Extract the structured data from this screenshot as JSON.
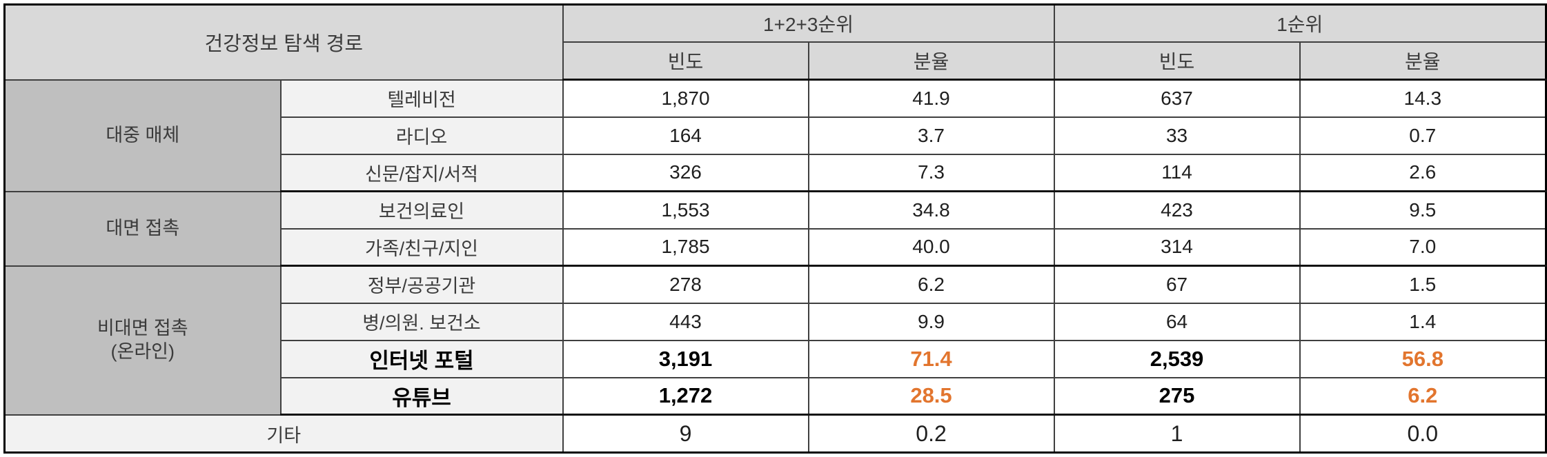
{
  "colors": {
    "accent": "#E2752E",
    "header_bg": "#D9D9D9",
    "group_bg": "#BFBFBF",
    "subrow_bg": "#F2F2F2"
  },
  "table": {
    "title": "건강정보 탐색 경로",
    "col_groups": [
      {
        "label": "1+2+3순위",
        "sub": [
          "빈도",
          "분율"
        ]
      },
      {
        "label": "1순위",
        "sub": [
          "빈도",
          "분율"
        ]
      }
    ],
    "groups": [
      {
        "label_lines": [
          "대중 매체"
        ],
        "rows": [
          {
            "label": "텔레비전",
            "values": [
              "1,870",
              "41.9",
              "637",
              "14.3"
            ],
            "emphasis": false
          },
          {
            "label": "라디오",
            "values": [
              "164",
              "3.7",
              "33",
              "0.7"
            ],
            "emphasis": false
          },
          {
            "label": "신문/잡지/서적",
            "values": [
              "326",
              "7.3",
              "114",
              "2.6"
            ],
            "emphasis": false
          }
        ]
      },
      {
        "label_lines": [
          "대면 접촉"
        ],
        "rows": [
          {
            "label": "보건의료인",
            "values": [
              "1,553",
              "34.8",
              "423",
              "9.5"
            ],
            "emphasis": false
          },
          {
            "label": "가족/친구/지인",
            "values": [
              "1,785",
              "40.0",
              "314",
              "7.0"
            ],
            "emphasis": false
          }
        ]
      },
      {
        "label_lines": [
          "비대면 접촉",
          "(온라인)"
        ],
        "rows": [
          {
            "label": "정부/공공기관",
            "values": [
              "278",
              "6.2",
              "67",
              "1.5"
            ],
            "emphasis": false
          },
          {
            "label": "병/의원. 보건소",
            "values": [
              "443",
              "9.9",
              "64",
              "1.4"
            ],
            "emphasis": false
          },
          {
            "label": "인터넷 포털",
            "values": [
              "3,191",
              "71.4",
              "2,539",
              "56.8"
            ],
            "emphasis": true
          },
          {
            "label": "유튜브",
            "values": [
              "1,272",
              "28.5",
              "275",
              "6.2"
            ],
            "emphasis": true
          }
        ]
      }
    ],
    "footer": {
      "label": "기타",
      "values": [
        "9",
        "0.2",
        "1",
        "0.0"
      ]
    }
  },
  "chart_data": {
    "type": "table",
    "title": "건강정보 탐색 경로",
    "columns": [
      "건강정보 탐색 경로 (구분)",
      "건강정보 탐색 경로 (세부)",
      "1+2+3순위 빈도",
      "1+2+3순위 분율",
      "1순위 빈도",
      "1순위 분율"
    ],
    "rows": [
      [
        "대중 매체",
        "텔레비전",
        1870,
        41.9,
        637,
        14.3
      ],
      [
        "대중 매체",
        "라디오",
        164,
        3.7,
        33,
        0.7
      ],
      [
        "대중 매체",
        "신문/잡지/서적",
        326,
        7.3,
        114,
        2.6
      ],
      [
        "대면 접촉",
        "보건의료인",
        1553,
        34.8,
        423,
        9.5
      ],
      [
        "대면 접촉",
        "가족/친구/지인",
        1785,
        40.0,
        314,
        7.0
      ],
      [
        "비대면 접촉 (온라인)",
        "정부/공공기관",
        278,
        6.2,
        67,
        1.5
      ],
      [
        "비대면 접촉 (온라인)",
        "병/의원. 보건소",
        443,
        9.9,
        64,
        1.4
      ],
      [
        "비대면 접촉 (온라인)",
        "인터넷 포털",
        3191,
        71.4,
        2539,
        56.8
      ],
      [
        "비대면 접촉 (온라인)",
        "유튜브",
        1272,
        28.5,
        275,
        6.2
      ],
      [
        "기타",
        "기타",
        9,
        0.2,
        1,
        0.0
      ]
    ],
    "highlighted_rows": [
      "인터넷 포털",
      "유튜브"
    ],
    "highlight_color": "#E2752E"
  }
}
